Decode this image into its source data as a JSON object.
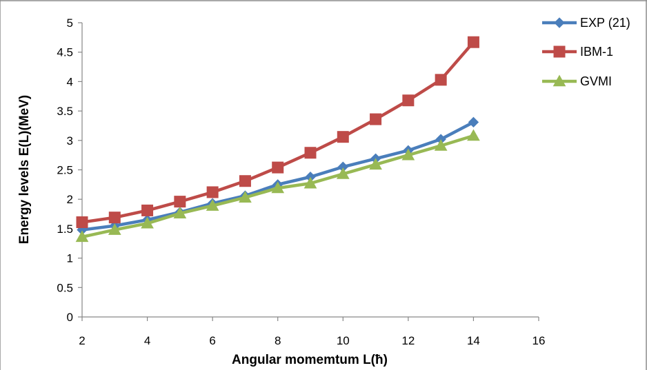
{
  "chart_data": {
    "type": "line",
    "xlabel": "Angular momemtum   L(ħ)",
    "ylabel": "Energy levels E(L)(MeV)",
    "xlim": [
      2,
      16
    ],
    "ylim": [
      0,
      5
    ],
    "x_ticks": [
      "2",
      "4",
      "6",
      "8",
      "10",
      "12",
      "14",
      "16"
    ],
    "y_ticks": [
      "0",
      "0.5",
      "1",
      "1.5",
      "2",
      "2.5",
      "3",
      "3.5",
      "4",
      "4.5",
      "5"
    ],
    "grid": false,
    "legend_position": "top-right",
    "x": [
      2,
      3,
      4,
      5,
      6,
      7,
      8,
      9,
      10,
      11,
      12,
      13,
      14
    ],
    "series": [
      {
        "name": "EXP (21)",
        "color": "#4a7ebb",
        "marker": "diamond",
        "values": [
          1.48,
          1.55,
          1.65,
          1.78,
          1.93,
          2.06,
          2.25,
          2.38,
          2.55,
          2.69,
          2.83,
          3.02,
          3.31
        ]
      },
      {
        "name": "IBM-1",
        "color": "#be4b48",
        "marker": "square",
        "values": [
          1.61,
          1.69,
          1.81,
          1.96,
          2.12,
          2.31,
          2.54,
          2.79,
          3.06,
          3.36,
          3.68,
          4.03,
          4.67
        ]
      },
      {
        "name": "GVMI",
        "color": "#98b954",
        "marker": "triangle",
        "values": [
          1.36,
          1.48,
          1.59,
          1.76,
          1.89,
          2.03,
          2.19,
          2.27,
          2.43,
          2.59,
          2.75,
          2.91,
          3.08
        ]
      }
    ]
  }
}
